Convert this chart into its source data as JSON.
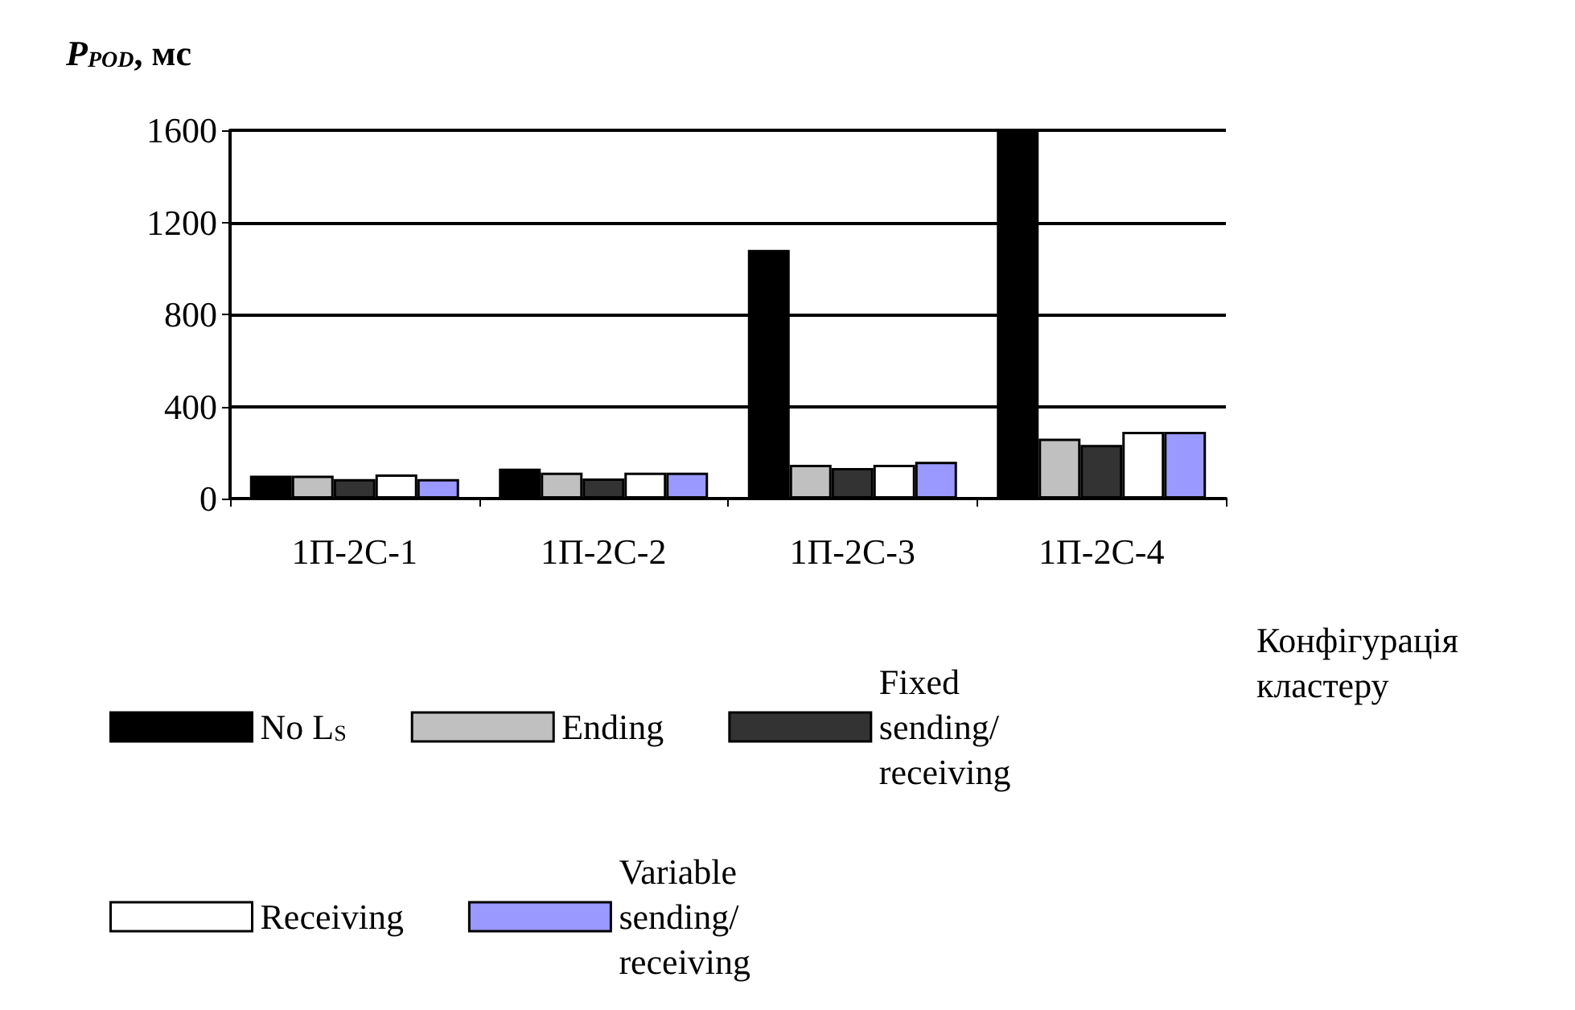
{
  "chart_data": {
    "type": "bar",
    "ylabel": "P$_{POD}$, мс",
    "xlabel": "Конфігурація\nкластеру",
    "categories": [
      "1П-2С-1",
      "1П-2С-2",
      "1П-2С-3",
      "1П-2С-4"
    ],
    "series": [
      {
        "name": "No L$_{S}$",
        "color": "#000000",
        "values": [
          100,
          130,
          1080,
          1600
        ]
      },
      {
        "name": "Ending",
        "color": "#c0c0c0",
        "values": [
          100,
          113,
          147,
          260
        ]
      },
      {
        "name": "Fixed\nsending/\nreceiving",
        "color": "#333333",
        "values": [
          85,
          87,
          133,
          233
        ]
      },
      {
        "name": "Receiving",
        "color": "#ffffff",
        "values": [
          105,
          113,
          147,
          290
        ]
      },
      {
        "name": "Variable\nsending/\nreceiving",
        "color": "#9999ff",
        "values": [
          85,
          113,
          160,
          290
        ]
      }
    ],
    "ylim": [
      0,
      1600
    ],
    "yticks": [
      0,
      400,
      800,
      1200,
      1600
    ],
    "grid": "y",
    "legend": "bottom"
  }
}
